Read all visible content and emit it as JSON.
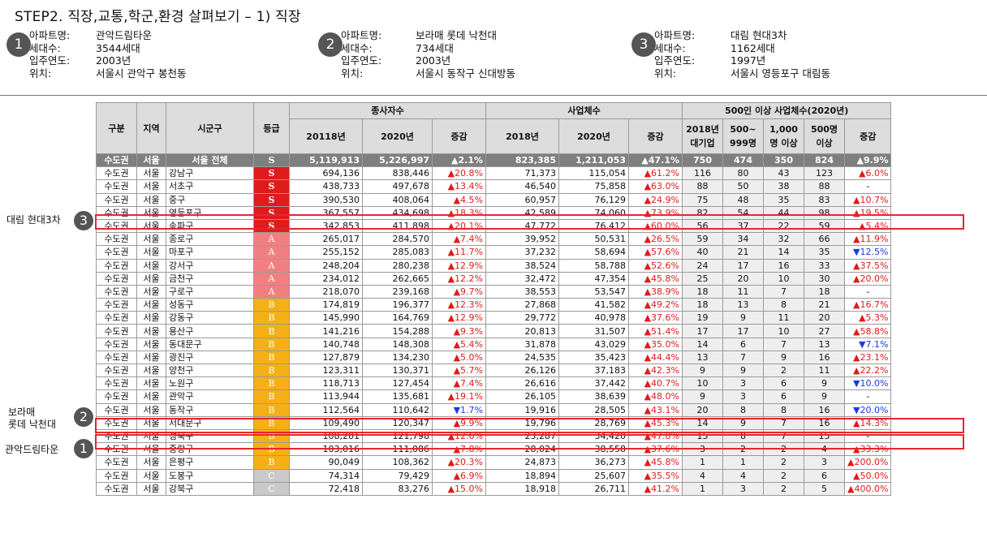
{
  "title": "STEP2. 직장,교통,학군,환경 살펴보기 – 1) 직장",
  "apartments": [
    {
      "num": "1",
      "labels": [
        "아파트명:",
        "세대수:",
        "입주연도:",
        "위치:"
      ],
      "values": [
        "관악드림타운",
        "3544세대",
        "2003년",
        "서울시 관악구 봉천동"
      ]
    },
    {
      "num": "2",
      "labels": [
        "아파트명:",
        "세대수:",
        "입주연도:",
        "위치:"
      ],
      "values": [
        "보라매 롯데 낙천대",
        "734세대",
        "2003년",
        "서울시 동작구 신대방동"
      ]
    },
    {
      "num": "3",
      "labels": [
        "아파트명:",
        "세대수:",
        "입주연도:",
        "위치:"
      ],
      "values": [
        "대림 현대3차",
        "1162세대",
        "1997년",
        "서울시 영등포구 대림동"
      ]
    }
  ],
  "side_labels": {
    "daelim": "대림 현대3차",
    "boramae_1": "보라매",
    "boramae_2": "롯데 낙천대",
    "gwanak": "관악드림타운"
  },
  "markers": {
    "m3": "3",
    "m2": "2",
    "m1": "1"
  },
  "table": {
    "headers": {
      "gubun": "구분",
      "region": "지역",
      "district": "시군구",
      "grade": "등급",
      "workers": "종사자수",
      "biz": "사업체수",
      "big": "500인 이상 사업체수(2020년)",
      "w2018": "20118년",
      "w2020": "2020년",
      "wchg": "증감",
      "b2018": "2018년",
      "b2020": "2020년",
      "bchg": "증감",
      "c1": "2018년 대기업",
      "c2": "500~ 999명",
      "c3": "1,000명 이상",
      "c4": "500명 이상",
      "c5": "증감"
    },
    "rows": [
      [
        "수도권",
        "서울",
        "서울 전체",
        "S",
        "5,119,913",
        "5,226,997",
        "▲2.1%",
        "823,385",
        "1,211,053",
        "▲47.1%",
        "750",
        "474",
        "350",
        "824",
        "▲9.9%"
      ],
      [
        "수도권",
        "서울",
        "강남구",
        "S",
        "694,136",
        "838,446",
        "▲20.8%",
        "71,373",
        "115,054",
        "▲61.2%",
        "116",
        "80",
        "43",
        "123",
        "▲6.0%"
      ],
      [
        "수도권",
        "서울",
        "서초구",
        "S",
        "438,733",
        "497,678",
        "▲13.4%",
        "46,540",
        "75,858",
        "▲63.0%",
        "88",
        "50",
        "38",
        "88",
        "-"
      ],
      [
        "수도권",
        "서울",
        "중구",
        "S",
        "390,530",
        "408,064",
        "▲4.5%",
        "60,957",
        "76,129",
        "▲24.9%",
        "75",
        "48",
        "35",
        "83",
        "▲10.7%"
      ],
      [
        "수도권",
        "서울",
        "영등포구",
        "S",
        "367,557",
        "434,698",
        "▲18.3%",
        "42,589",
        "74,060",
        "▲73.9%",
        "82",
        "54",
        "44",
        "98",
        "▲19.5%"
      ],
      [
        "수도권",
        "서울",
        "송파구",
        "S",
        "342,853",
        "411,898",
        "▲20.1%",
        "47,772",
        "76,412",
        "▲60.0%",
        "56",
        "37",
        "22",
        "59",
        "▲5.4%"
      ],
      [
        "수도권",
        "서울",
        "종로구",
        "A",
        "265,017",
        "284,570",
        "▲7.4%",
        "39,952",
        "50,531",
        "▲26.5%",
        "59",
        "34",
        "32",
        "66",
        "▲11.9%"
      ],
      [
        "수도권",
        "서울",
        "마포구",
        "A",
        "255,152",
        "285,083",
        "▲11.7%",
        "37,232",
        "58,694",
        "▲57.6%",
        "40",
        "21",
        "14",
        "35",
        "▼12.5%"
      ],
      [
        "수도권",
        "서울",
        "강서구",
        "A",
        "248,204",
        "280,238",
        "▲12.9%",
        "38,524",
        "58,788",
        "▲52.6%",
        "24",
        "17",
        "16",
        "33",
        "▲37.5%"
      ],
      [
        "수도권",
        "서울",
        "금천구",
        "A",
        "234,012",
        "262,665",
        "▲12.2%",
        "32,472",
        "47,354",
        "▲45.8%",
        "25",
        "20",
        "10",
        "30",
        "▲20.0%"
      ],
      [
        "수도권",
        "서울",
        "구로구",
        "A",
        "218,070",
        "239,168",
        "▲9.7%",
        "38,553",
        "53,547",
        "▲38.9%",
        "18",
        "11",
        "7",
        "18",
        "-"
      ],
      [
        "수도권",
        "서울",
        "성동구",
        "B",
        "174,819",
        "196,377",
        "▲12.3%",
        "27,868",
        "41,582",
        "▲49.2%",
        "18",
        "13",
        "8",
        "21",
        "▲16.7%"
      ],
      [
        "수도권",
        "서울",
        "강동구",
        "B",
        "145,990",
        "164,769",
        "▲12.9%",
        "29,772",
        "40,978",
        "▲37.6%",
        "19",
        "9",
        "11",
        "20",
        "▲5.3%"
      ],
      [
        "수도권",
        "서울",
        "용산구",
        "B",
        "141,216",
        "154,288",
        "▲9.3%",
        "20,813",
        "31,507",
        "▲51.4%",
        "17",
        "17",
        "10",
        "27",
        "▲58.8%"
      ],
      [
        "수도권",
        "서울",
        "동대문구",
        "B",
        "140,748",
        "148,308",
        "▲5.4%",
        "31,878",
        "43,029",
        "▲35.0%",
        "14",
        "6",
        "7",
        "13",
        "▼7.1%"
      ],
      [
        "수도권",
        "서울",
        "광진구",
        "B",
        "127,879",
        "134,230",
        "▲5.0%",
        "24,535",
        "35,423",
        "▲44.4%",
        "13",
        "7",
        "9",
        "16",
        "▲23.1%"
      ],
      [
        "수도권",
        "서울",
        "양천구",
        "B",
        "123,311",
        "130,371",
        "▲5.7%",
        "26,126",
        "37,183",
        "▲42.3%",
        "9",
        "9",
        "2",
        "11",
        "▲22.2%"
      ],
      [
        "수도권",
        "서울",
        "노원구",
        "B",
        "118,713",
        "127,454",
        "▲7.4%",
        "26,616",
        "37,442",
        "▲40.7%",
        "10",
        "3",
        "6",
        "9",
        "▼10.0%"
      ],
      [
        "수도권",
        "서울",
        "관악구",
        "B",
        "113,944",
        "135,681",
        "▲19.1%",
        "26,105",
        "38,639",
        "▲48.0%",
        "9",
        "3",
        "6",
        "9",
        "-"
      ],
      [
        "수도권",
        "서울",
        "동작구",
        "B",
        "112,564",
        "110,642",
        "▼1.7%",
        "19,916",
        "28,505",
        "▲43.1%",
        "20",
        "8",
        "8",
        "16",
        "▼20.0%"
      ],
      [
        "수도권",
        "서울",
        "서대문구",
        "B",
        "109,490",
        "120,347",
        "▲9.9%",
        "19,796",
        "28,769",
        "▲45.3%",
        "14",
        "9",
        "7",
        "16",
        "▲14.3%"
      ],
      [
        "수도권",
        "서울",
        "성북구",
        "B",
        "108,201",
        "121,798",
        "▲12.6%",
        "23,287",
        "34,420",
        "▲47.8%",
        "15",
        "8",
        "7",
        "15",
        "-"
      ],
      [
        "수도권",
        "서울",
        "중랑구",
        "B",
        "103,016",
        "111,086",
        "▲7.8%",
        "28,024",
        "38,558",
        "▲37.6%",
        "3",
        "2",
        "2",
        "4",
        "▲33.3%"
      ],
      [
        "수도권",
        "서울",
        "은평구",
        "B",
        "90,049",
        "108,362",
        "▲20.3%",
        "24,873",
        "36,273",
        "▲45.8%",
        "1",
        "1",
        "2",
        "3",
        "▲200.0%"
      ],
      [
        "수도권",
        "서울",
        "도봉구",
        "C",
        "74,314",
        "79,429",
        "▲6.9%",
        "18,894",
        "25,607",
        "▲35.5%",
        "4",
        "4",
        "2",
        "6",
        "▲50.0%"
      ],
      [
        "수도권",
        "서울",
        "강북구",
        "C",
        "72,418",
        "83,276",
        "▲15.0%",
        "18,918",
        "26,711",
        "▲41.2%",
        "1",
        "3",
        "2",
        "5",
        "▲400.0%"
      ]
    ]
  }
}
